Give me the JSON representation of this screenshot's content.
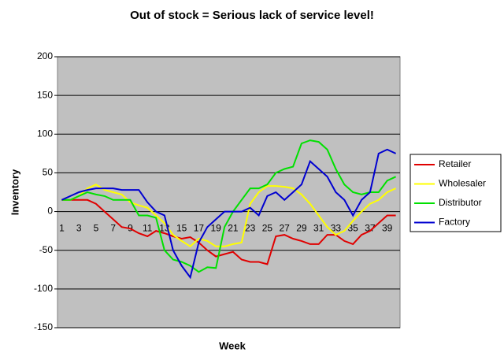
{
  "chart_data": {
    "type": "line",
    "title": "Out of stock = Serious lack of service level!",
    "x_label": "Week",
    "y_label": "Inventory",
    "categories": [
      1,
      null,
      3,
      null,
      5,
      null,
      7,
      null,
      9,
      null,
      11,
      null,
      13,
      null,
      15,
      null,
      17,
      null,
      19,
      null,
      21,
      null,
      23,
      null,
      25,
      null,
      27,
      null,
      29,
      null,
      31,
      null,
      33,
      null,
      35,
      null,
      37,
      null,
      39,
      null
    ],
    "ylim": [
      -150,
      200
    ],
    "yticks": [
      -150,
      -100,
      -50,
      0,
      50,
      100,
      150,
      200
    ],
    "grid": true,
    "legend": "right",
    "series": [
      {
        "name": "Retailer",
        "color": "#e00000",
        "values": [
          15,
          15,
          15,
          15,
          10,
          0,
          -10,
          -20,
          -22,
          -28,
          -32,
          -25,
          -28,
          -32,
          -35,
          -33,
          -40,
          -50,
          -58,
          -55,
          -52,
          -62,
          -65,
          -65,
          -68,
          -32,
          -30,
          -35,
          -38,
          -42,
          -42,
          -30,
          -30,
          -38,
          -42,
          -30,
          -25,
          -15,
          -5,
          -5
        ]
      },
      {
        "name": "Wholesaler",
        "color": "#ffff00",
        "values": [
          15,
          15,
          20,
          30,
          35,
          28,
          25,
          22,
          12,
          8,
          5,
          -5,
          -15,
          -30,
          -38,
          -45,
          -35,
          -38,
          -45,
          -45,
          -42,
          -40,
          10,
          25,
          33,
          33,
          32,
          30,
          22,
          10,
          -5,
          -20,
          -30,
          -25,
          -12,
          0,
          10,
          15,
          25,
          30
        ]
      },
      {
        "name": "Distributor",
        "color": "#00e000",
        "values": [
          15,
          15,
          20,
          25,
          22,
          20,
          15,
          15,
          15,
          -5,
          -5,
          -8,
          -50,
          -62,
          -65,
          -70,
          -78,
          -72,
          -73,
          -20,
          0,
          15,
          30,
          30,
          35,
          50,
          55,
          58,
          88,
          92,
          90,
          80,
          55,
          35,
          25,
          22,
          25,
          25,
          40,
          45
        ]
      },
      {
        "name": "Factory",
        "color": "#0000d0",
        "values": [
          15,
          20,
          25,
          28,
          30,
          30,
          30,
          28,
          28,
          28,
          12,
          0,
          -5,
          -50,
          -70,
          -85,
          -40,
          -20,
          -10,
          0,
          0,
          0,
          5,
          -5,
          20,
          25,
          15,
          25,
          35,
          65,
          55,
          45,
          25,
          15,
          -5,
          15,
          25,
          75,
          80,
          75
        ]
      }
    ]
  }
}
